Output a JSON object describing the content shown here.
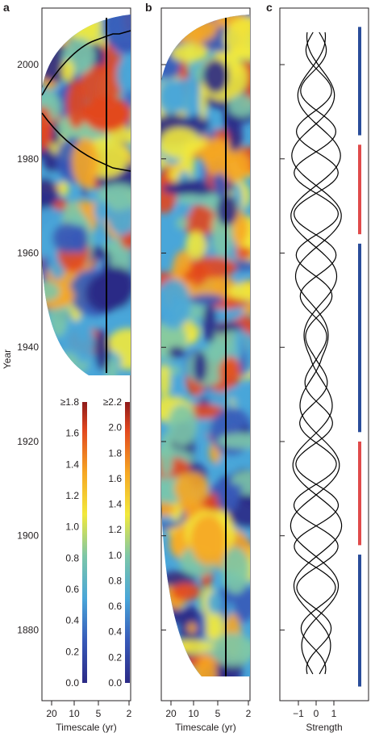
{
  "chart_data": [
    {
      "panel": "a",
      "type": "heatmap",
      "title": "",
      "xlabel": "Timescale (yr)",
      "ylabel": "Year",
      "x_ticks": [
        "20",
        "10",
        "5",
        "2"
      ],
      "y_ticks": [
        "2000",
        "1980",
        "1960",
        "1940"
      ],
      "ylim": [
        1935,
        2012
      ],
      "x_scale": "log (period, decreasing to the right)",
      "colorbar": {
        "min": 0.0,
        "max": 1.8,
        "top_label": "≥1.8",
        "ticks": [
          "1.6",
          "1.4",
          "1.2",
          "1.0",
          "0.8",
          "0.6",
          "0.4",
          "0.2",
          "0.0"
        ]
      },
      "markers": [
        {
          "kind": "vertical_line",
          "timescale_yr": 3.7
        }
      ]
    },
    {
      "panel": "b",
      "type": "heatmap",
      "title": "",
      "xlabel": "Timescale (yr)",
      "x_ticks": [
        "20",
        "10",
        "5",
        "2"
      ],
      "ylim": [
        1865,
        2012
      ],
      "x_scale": "log (period, decreasing to the right)",
      "colorbar": {
        "min": 0.0,
        "max": 2.2,
        "top_label": "≥2.2",
        "ticks": [
          "2.0",
          "1.8",
          "1.6",
          "1.4",
          "1.2",
          "1.0",
          "0.8",
          "0.6",
          "0.4",
          "0.2",
          "0.0"
        ]
      },
      "markers": [
        {
          "kind": "vertical_line",
          "timescale_yr": 3.7
        }
      ]
    },
    {
      "panel": "c",
      "type": "line",
      "title": "",
      "xlabel": "Strength",
      "x_ticks": [
        "−1",
        "0",
        "1"
      ],
      "xlim": [
        -1.5,
        1.5
      ],
      "ylim": [
        1865,
        2012
      ],
      "sign_bars": [
        {
          "color": "#2a4d9a",
          "from": 1985,
          "to": 2008
        },
        {
          "color": "#e04b4b",
          "from": 1964,
          "to": 1983
        },
        {
          "color": "#2a4d9a",
          "from": 1922,
          "to": 1962
        },
        {
          "color": "#e04b4b",
          "from": 1898,
          "to": 1920
        },
        {
          "color": "#2a4d9a",
          "from": 1868,
          "to": 1896
        }
      ]
    }
  ],
  "colors": {
    "blue_bar": "#2a4d9a",
    "red_bar": "#e04b4b"
  }
}
